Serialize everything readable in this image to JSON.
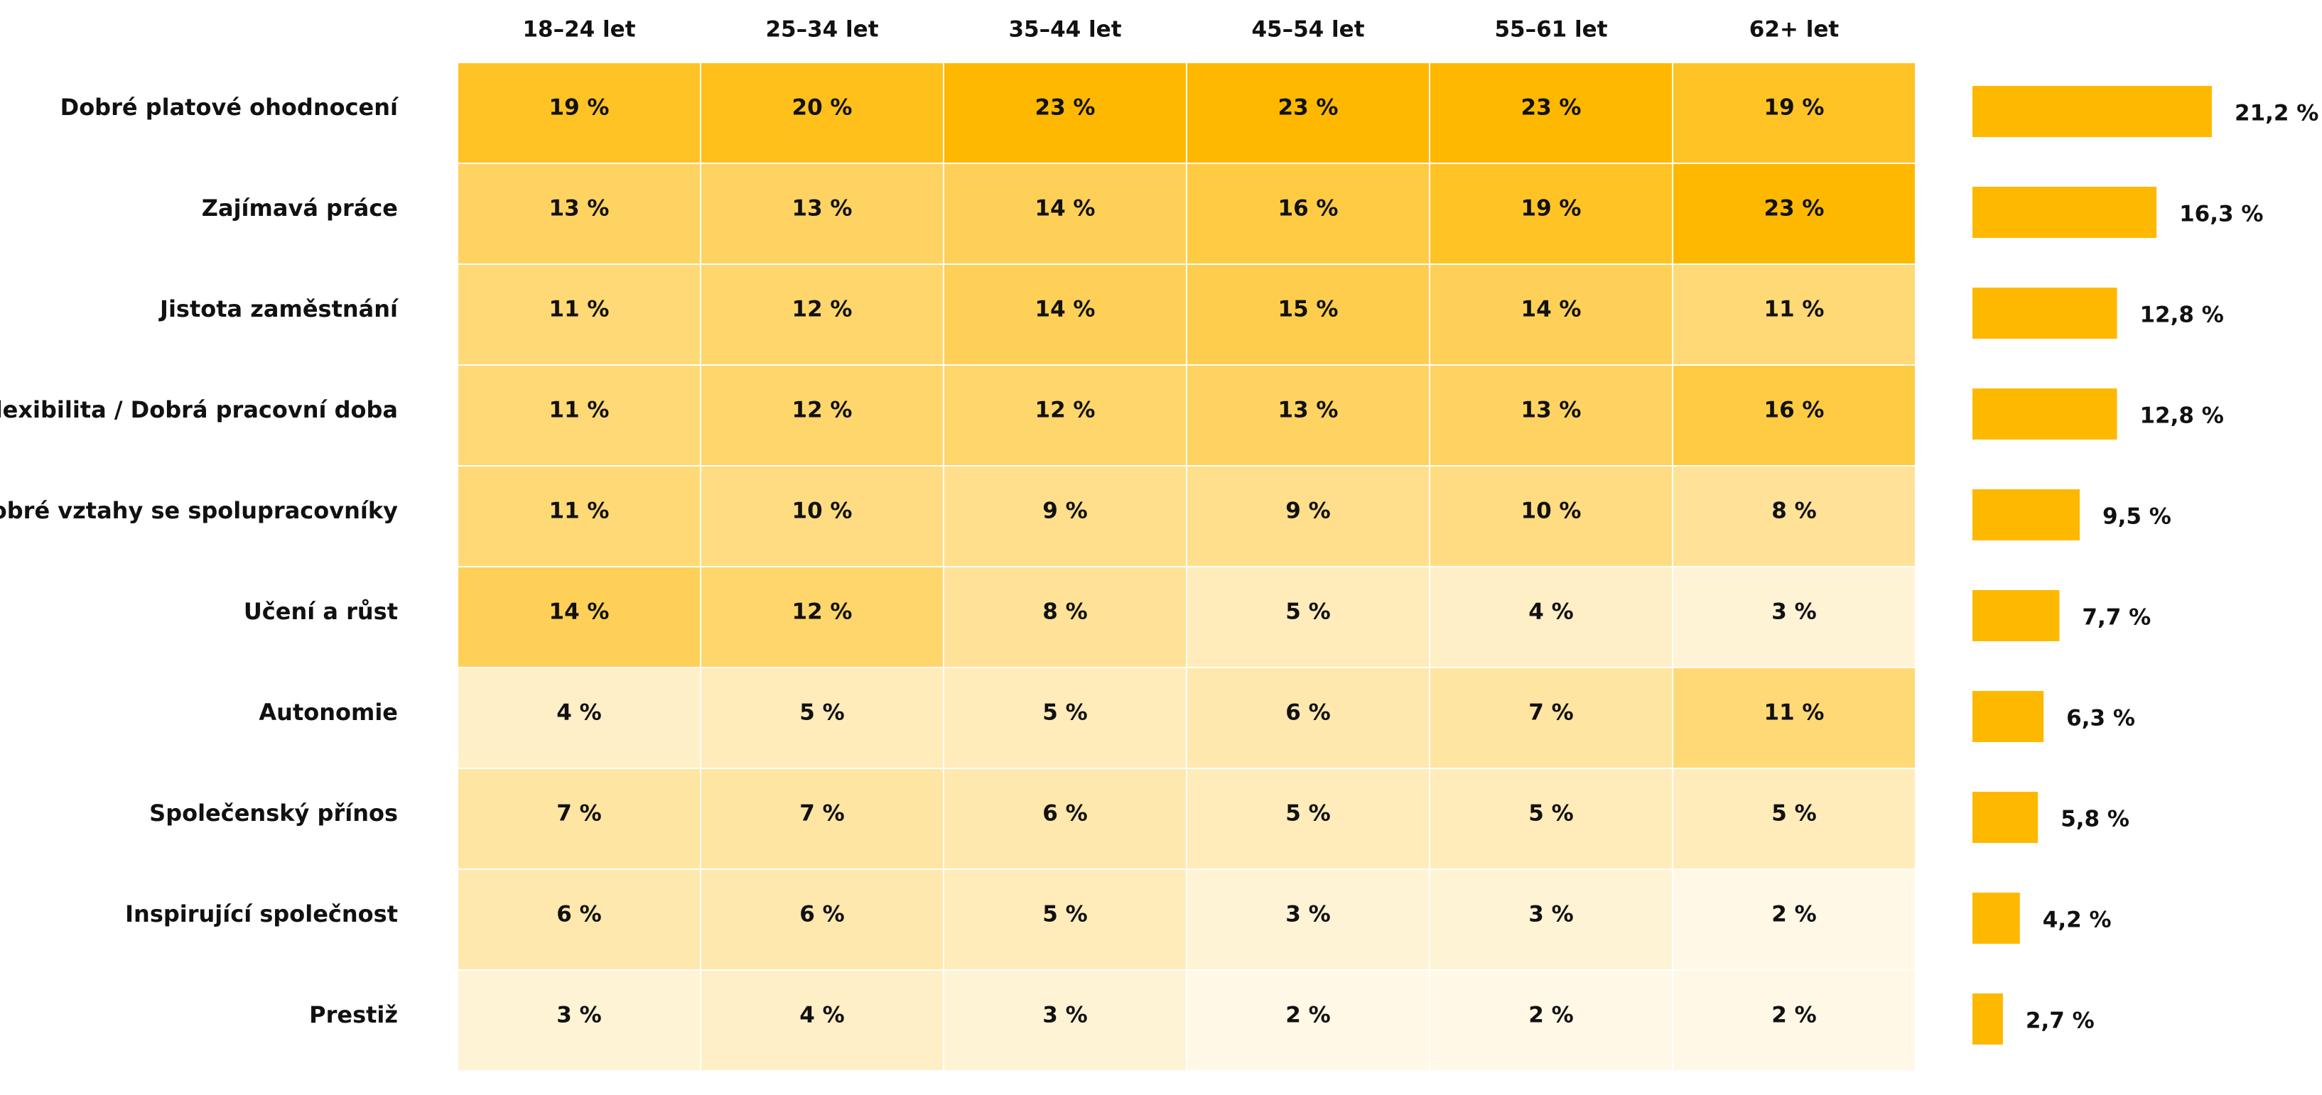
{
  "chart_data": {
    "type": "heatmap",
    "columns": [
      "18–24 let",
      "25–34 let",
      "35–44 let",
      "45–54 let",
      "55–61 let",
      "62+ let"
    ],
    "rows": [
      "Dobré platové ohodnocení",
      "Zajímavá práce",
      "Jistota zaměstnání",
      "Flexibilita / Dobrá pracovní doba",
      "Dobré vztahy se spolupracovníky",
      "Učení a růst",
      "Autonomie",
      "Společenský přínos",
      "Inspirující společnost",
      "Prestiž"
    ],
    "values": [
      [
        19,
        20,
        23,
        23,
        23,
        19
      ],
      [
        13,
        13,
        14,
        16,
        19,
        23
      ],
      [
        11,
        12,
        14,
        15,
        14,
        11
      ],
      [
        11,
        12,
        12,
        13,
        13,
        16
      ],
      [
        11,
        10,
        9,
        9,
        10,
        8
      ],
      [
        14,
        12,
        8,
        5,
        4,
        3
      ],
      [
        4,
        5,
        5,
        6,
        7,
        11
      ],
      [
        7,
        7,
        6,
        5,
        5,
        5
      ],
      [
        6,
        6,
        5,
        3,
        3,
        2
      ],
      [
        3,
        4,
        3,
        2,
        2,
        2
      ]
    ],
    "value_labels": [
      [
        "19 %",
        "20 %",
        "23 %",
        "23 %",
        "23 %",
        "19 %"
      ],
      [
        "13 %",
        "13 %",
        "14 %",
        "16 %",
        "19 %",
        "23 %"
      ],
      [
        "11 %",
        "12 %",
        "14 %",
        "15 %",
        "14 %",
        "11 %"
      ],
      [
        "11 %",
        "12 %",
        "12 %",
        "13 %",
        "13 %",
        "16 %"
      ],
      [
        "11 %",
        "10 %",
        "9 %",
        "9 %",
        "10 %",
        "8 %"
      ],
      [
        "14 %",
        "12 %",
        "8 %",
        "5 %",
        "4 %",
        "3 %"
      ],
      [
        "4 %",
        "5 %",
        "5 %",
        "6 %",
        "7 %",
        "11 %"
      ],
      [
        "7 %",
        "7 %",
        "6 %",
        "5 %",
        "5 %",
        "5 %"
      ],
      [
        "6 %",
        "6 %",
        "5 %",
        "3 %",
        "3 %",
        "2 %"
      ],
      [
        "3 %",
        "4 %",
        "3 %",
        "2 %",
        "2 %",
        "2 %"
      ]
    ],
    "totals": [
      21.2,
      16.3,
      12.8,
      12.8,
      9.5,
      7.7,
      6.3,
      5.8,
      4.2,
      2.7
    ],
    "total_labels": [
      "21,2 %",
      "16,3 %",
      "12,8 %",
      "12,8 %",
      "9,5 %",
      "7,7 %",
      "6,3 %",
      "5,8 %",
      "4,2 %",
      "2,7 %"
    ],
    "colors": {
      "accent": "#FFB800",
      "scale_low": "#FFF8E6",
      "scale_high": "#FFB800",
      "grid_line": "#FFFFFF",
      "text": "#111111"
    }
  }
}
